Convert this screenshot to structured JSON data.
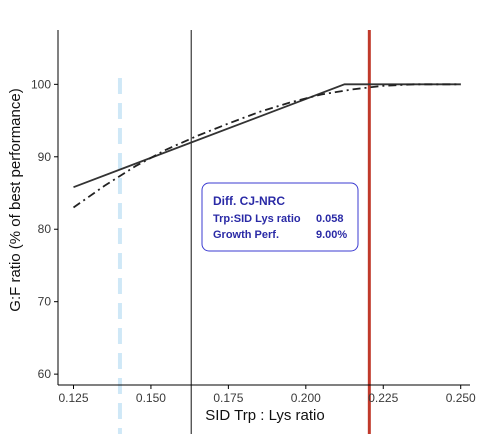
{
  "chart_data": {
    "type": "line",
    "xlabel": "SID Trp : Lys ratio",
    "ylabel": "G:F ratio (% of best performance)",
    "xlim": [
      0.12,
      0.253
    ],
    "ylim": [
      58.5,
      107.5
    ],
    "xticks": [
      0.125,
      0.15,
      0.175,
      0.2,
      0.225,
      0.25
    ],
    "xtick_labels": [
      "0.125",
      "0.150",
      "0.175",
      "0.200",
      "0.225",
      "0.250"
    ],
    "yticks": [
      60,
      70,
      80,
      90,
      100
    ],
    "ytick_labels": [
      "60",
      "70",
      "80",
      "90",
      "100"
    ],
    "grid": false,
    "series": [
      {
        "style": "solid",
        "color": "#333333",
        "x": [
          0.125,
          0.2125,
          0.25
        ],
        "y": [
          85.8,
          100,
          100
        ]
      },
      {
        "style": "dashdot",
        "color": "#222222",
        "x": [
          0.125,
          0.135,
          0.145,
          0.155,
          0.165,
          0.175,
          0.185,
          0.195,
          0.205,
          0.215,
          0.225,
          0.235,
          0.245,
          0.25
        ],
        "y": [
          83.0,
          86.0,
          88.7,
          91.0,
          92.9,
          94.6,
          96.2,
          97.5,
          98.6,
          99.3,
          99.8,
          100.0,
          100.0,
          100.0
        ]
      }
    ],
    "vlines": [
      {
        "x": 0.14,
        "color": "#cfe8f7",
        "style": "dashed",
        "width": 4,
        "name": "nrc-line"
      },
      {
        "x": 0.163,
        "color": "#111111",
        "style": "solid",
        "width": 1,
        "name": "marker-line"
      },
      {
        "x": 0.2205,
        "color": "#c0392b",
        "style": "solid",
        "width": 3,
        "name": "optimum-line"
      }
    ],
    "annotation": {
      "title": "Diff. CJ-NRC",
      "rows": [
        {
          "label": "Trp:SID Lys ratio",
          "value": "0.058"
        },
        {
          "label": "Growth Perf.",
          "value": "9.00%"
        }
      ],
      "border_color": "#3b3bd1",
      "text_color": "#2a2aa6"
    }
  }
}
